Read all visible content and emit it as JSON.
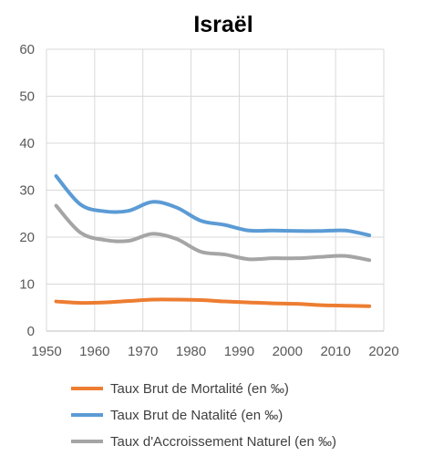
{
  "chart_data": {
    "type": "line",
    "title": "Israël",
    "xlabel": "",
    "ylabel": "",
    "xlim": [
      1950,
      2020
    ],
    "ylim": [
      0,
      60
    ],
    "x_ticks": [
      1950,
      1960,
      1970,
      1980,
      1990,
      2000,
      2010,
      2020
    ],
    "y_ticks": [
      0,
      10,
      20,
      30,
      40,
      50,
      60
    ],
    "grid": true,
    "legend_position": "bottom",
    "x": [
      1952,
      1957,
      1962,
      1967,
      1972,
      1977,
      1982,
      1987,
      1992,
      1997,
      2002,
      2007,
      2012,
      2017
    ],
    "series": [
      {
        "name": "Taux Brut de Mortalité (en ‰)",
        "color": "#ED7D31",
        "values": [
          6.3,
          6.0,
          6.1,
          6.4,
          6.7,
          6.7,
          6.6,
          6.3,
          6.1,
          5.9,
          5.8,
          5.5,
          5.4,
          5.3
        ]
      },
      {
        "name": "Taux Brut de Natalité (en ‰)",
        "color": "#5B9BD5",
        "values": [
          33.0,
          27.0,
          25.5,
          25.6,
          27.5,
          26.3,
          23.5,
          22.6,
          21.4,
          21.4,
          21.3,
          21.3,
          21.4,
          20.4
        ]
      },
      {
        "name": "Taux d'Accroissement Naturel (en ‰)",
        "color": "#A5A5A5",
        "values": [
          26.7,
          21.0,
          19.4,
          19.2,
          20.7,
          19.6,
          16.9,
          16.3,
          15.3,
          15.5,
          15.5,
          15.8,
          16.0,
          15.1
        ]
      }
    ]
  }
}
